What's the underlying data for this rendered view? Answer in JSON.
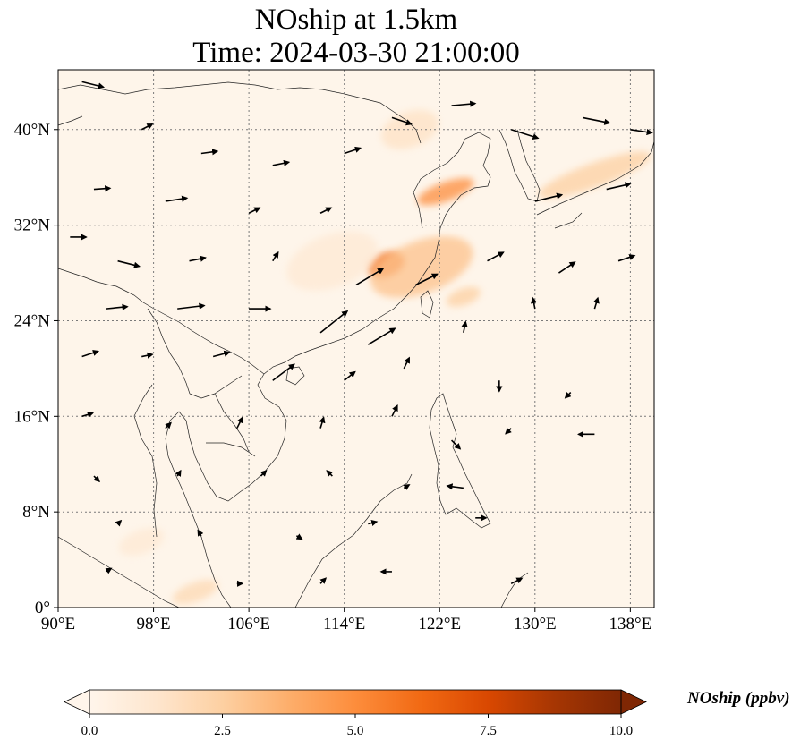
{
  "title_line1": "NOship at 1.5km",
  "title_line2": "Time: 2024-03-30 21:00:00",
  "map": {
    "extent": {
      "lon_min": 90,
      "lon_max": 140,
      "lat_min": 0,
      "lat_max": 45
    },
    "gridlines": true,
    "x_tick_labels": [
      {
        "lon": 90,
        "label": "90°E"
      },
      {
        "lon": 98,
        "label": "98°E"
      },
      {
        "lon": 106,
        "label": "106°E"
      },
      {
        "lon": 114,
        "label": "114°E"
      },
      {
        "lon": 122,
        "label": "122°E"
      },
      {
        "lon": 130,
        "label": "130°E"
      },
      {
        "lon": 138,
        "label": "138°E"
      }
    ],
    "y_tick_labels": [
      {
        "lat": 0,
        "label": "0°"
      },
      {
        "lat": 8,
        "label": "8°N"
      },
      {
        "lat": 16,
        "label": "16°N"
      },
      {
        "lat": 24,
        "label": "24°N"
      },
      {
        "lat": 32,
        "label": "32°N"
      },
      {
        "lat": 40,
        "label": "40°N"
      }
    ],
    "concentration_hotspots": [
      {
        "lon": 117.5,
        "lat": 28.7,
        "value": 6.0,
        "r_lon": 1.6,
        "r_lat": 1.0
      },
      {
        "lon": 120.5,
        "lat": 28.5,
        "value": 3.0,
        "r_lon": 4.5,
        "r_lat": 2.2
      },
      {
        "lon": 113.0,
        "lat": 29.0,
        "value": 1.0,
        "r_lon": 4.0,
        "r_lat": 2.2
      },
      {
        "lon": 122.5,
        "lat": 34.8,
        "value": 5.0,
        "r_lon": 2.5,
        "r_lat": 0.8
      },
      {
        "lon": 124.0,
        "lat": 26.0,
        "value": 2.5,
        "r_lon": 1.5,
        "r_lat": 0.7
      },
      {
        "lon": 135.0,
        "lat": 36.2,
        "value": 2.5,
        "r_lon": 5.0,
        "r_lat": 1.0
      },
      {
        "lon": 119.5,
        "lat": 40.0,
        "value": 1.5,
        "r_lon": 2.5,
        "r_lat": 1.5
      },
      {
        "lon": 101.5,
        "lat": 1.3,
        "value": 2.0,
        "r_lon": 2.0,
        "r_lat": 0.8
      },
      {
        "lon": 97.0,
        "lat": 5.5,
        "value": 1.0,
        "r_lon": 2.0,
        "r_lat": 1.0
      }
    ],
    "wind_vectors": [
      {
        "lon": 92,
        "lat": 44,
        "u": 2.0,
        "v": -0.5
      },
      {
        "lon": 97,
        "lat": 40,
        "u": 1.0,
        "v": 0.5
      },
      {
        "lon": 102,
        "lat": 38,
        "u": 1.5,
        "v": 0.2
      },
      {
        "lon": 108,
        "lat": 37,
        "u": 1.5,
        "v": 0.3
      },
      {
        "lon": 114,
        "lat": 38,
        "u": 1.5,
        "v": 0.5
      },
      {
        "lon": 118,
        "lat": 41,
        "u": 1.8,
        "v": -0.6
      },
      {
        "lon": 123,
        "lat": 42,
        "u": 2.2,
        "v": 0.2
      },
      {
        "lon": 128,
        "lat": 40,
        "u": 2.5,
        "v": -0.8
      },
      {
        "lon": 134,
        "lat": 41,
        "u": 2.5,
        "v": -0.5
      },
      {
        "lon": 138,
        "lat": 40,
        "u": 2.0,
        "v": -0.3
      },
      {
        "lon": 93,
        "lat": 35,
        "u": 1.5,
        "v": 0.1
      },
      {
        "lon": 99,
        "lat": 34,
        "u": 2.0,
        "v": 0.3
      },
      {
        "lon": 106,
        "lat": 33,
        "u": 1.0,
        "v": 0.5
      },
      {
        "lon": 112,
        "lat": 33,
        "u": 1.0,
        "v": 0.5
      },
      {
        "lon": 130,
        "lat": 34,
        "u": 2.5,
        "v": 0.6
      },
      {
        "lon": 136,
        "lat": 35,
        "u": 2.2,
        "v": 0.5
      },
      {
        "lon": 91,
        "lat": 31,
        "u": 1.5,
        "v": 0
      },
      {
        "lon": 95,
        "lat": 29,
        "u": 2.0,
        "v": -0.5
      },
      {
        "lon": 101,
        "lat": 29,
        "u": 1.5,
        "v": 0.3
      },
      {
        "lon": 108,
        "lat": 29,
        "u": 0.5,
        "v": 0.8
      },
      {
        "lon": 115,
        "lat": 27,
        "u": 2.5,
        "v": 1.5
      },
      {
        "lon": 120,
        "lat": 27,
        "u": 2.0,
        "v": 1.0
      },
      {
        "lon": 126,
        "lat": 29,
        "u": 1.5,
        "v": 0.8
      },
      {
        "lon": 132,
        "lat": 28,
        "u": 1.5,
        "v": 1.0
      },
      {
        "lon": 137,
        "lat": 29,
        "u": 1.5,
        "v": 0.5
      },
      {
        "lon": 94,
        "lat": 25,
        "u": 2.0,
        "v": 0.2
      },
      {
        "lon": 100,
        "lat": 25,
        "u": 2.5,
        "v": 0.3
      },
      {
        "lon": 106,
        "lat": 25,
        "u": 2.0,
        "v": 0
      },
      {
        "lon": 112,
        "lat": 23,
        "u": 2.5,
        "v": 2.0
      },
      {
        "lon": 116,
        "lat": 22,
        "u": 2.5,
        "v": 1.5
      },
      {
        "lon": 124,
        "lat": 23,
        "u": 0.2,
        "v": 1.0
      },
      {
        "lon": 130,
        "lat": 25,
        "u": -0.2,
        "v": 1.0
      },
      {
        "lon": 135,
        "lat": 25,
        "u": 0.3,
        "v": 1.0
      },
      {
        "lon": 92,
        "lat": 21,
        "u": 1.5,
        "v": 0.5
      },
      {
        "lon": 97,
        "lat": 21,
        "u": 1.0,
        "v": 0.2
      },
      {
        "lon": 103,
        "lat": 21,
        "u": 1.5,
        "v": 0.4
      },
      {
        "lon": 108,
        "lat": 19,
        "u": 2.0,
        "v": 1.5
      },
      {
        "lon": 114,
        "lat": 19,
        "u": 1.0,
        "v": 0.8
      },
      {
        "lon": 119,
        "lat": 20,
        "u": 0.5,
        "v": 1.0
      },
      {
        "lon": 127,
        "lat": 19,
        "u": 0,
        "v": -1.0
      },
      {
        "lon": 133,
        "lat": 18,
        "u": -0.5,
        "v": -0.5
      },
      {
        "lon": 92,
        "lat": 16,
        "u": 1.0,
        "v": 0.3
      },
      {
        "lon": 99,
        "lat": 15,
        "u": 0.5,
        "v": 0.5
      },
      {
        "lon": 105,
        "lat": 15,
        "u": 0.5,
        "v": 1.0
      },
      {
        "lon": 112,
        "lat": 15,
        "u": 0.3,
        "v": 1.0
      },
      {
        "lon": 118,
        "lat": 16,
        "u": 0.5,
        "v": 1.0
      },
      {
        "lon": 123,
        "lat": 14,
        "u": 0.8,
        "v": -0.8
      },
      {
        "lon": 128,
        "lat": 15,
        "u": -0.5,
        "v": -0.5
      },
      {
        "lon": 135,
        "lat": 14.5,
        "u": -1.5,
        "v": 0
      },
      {
        "lon": 93,
        "lat": 11,
        "u": 0.5,
        "v": -0.5
      },
      {
        "lon": 100,
        "lat": 11,
        "u": 0.3,
        "v": 0.5
      },
      {
        "lon": 107,
        "lat": 11,
        "u": 0.5,
        "v": 0.5
      },
      {
        "lon": 113,
        "lat": 11,
        "u": -0.5,
        "v": 0.5
      },
      {
        "lon": 119,
        "lat": 10,
        "u": 0.5,
        "v": 0.3
      },
      {
        "lon": 124,
        "lat": 10,
        "u": -1.5,
        "v": 0.2
      },
      {
        "lon": 95,
        "lat": 7,
        "u": 0.3,
        "v": 0.3
      },
      {
        "lon": 102,
        "lat": 6,
        "u": -0.3,
        "v": 0.5
      },
      {
        "lon": 110,
        "lat": 6,
        "u": 0.5,
        "v": -0.3
      },
      {
        "lon": 116,
        "lat": 7,
        "u": 0.8,
        "v": 0.2
      },
      {
        "lon": 125,
        "lat": 7.5,
        "u": 1.0,
        "v": 0
      },
      {
        "lon": 94,
        "lat": 3,
        "u": 0.5,
        "v": 0.3
      },
      {
        "lon": 105,
        "lat": 2,
        "u": 0.5,
        "v": 0
      },
      {
        "lon": 112,
        "lat": 2,
        "u": 0.5,
        "v": 0.5
      },
      {
        "lon": 118,
        "lat": 3,
        "u": -1.0,
        "v": 0
      },
      {
        "lon": 128,
        "lat": 2,
        "u": 1.0,
        "v": 0.5
      }
    ]
  },
  "colorbar": {
    "label": "NOship (ppbv)",
    "min": 0.0,
    "max": 10.0,
    "extend": "both",
    "ticks": [
      {
        "value": 0.0,
        "label": "0.0"
      },
      {
        "value": 2.5,
        "label": "2.5"
      },
      {
        "value": 5.0,
        "label": "5.0"
      },
      {
        "value": 7.5,
        "label": "7.5"
      },
      {
        "value": 10.0,
        "label": "10.0"
      }
    ],
    "colors": [
      "#fff5eb",
      "#fee6ce",
      "#fdd0a2",
      "#fdae6b",
      "#fd8d3c",
      "#f16913",
      "#d94801",
      "#a63603",
      "#7f2704"
    ]
  }
}
